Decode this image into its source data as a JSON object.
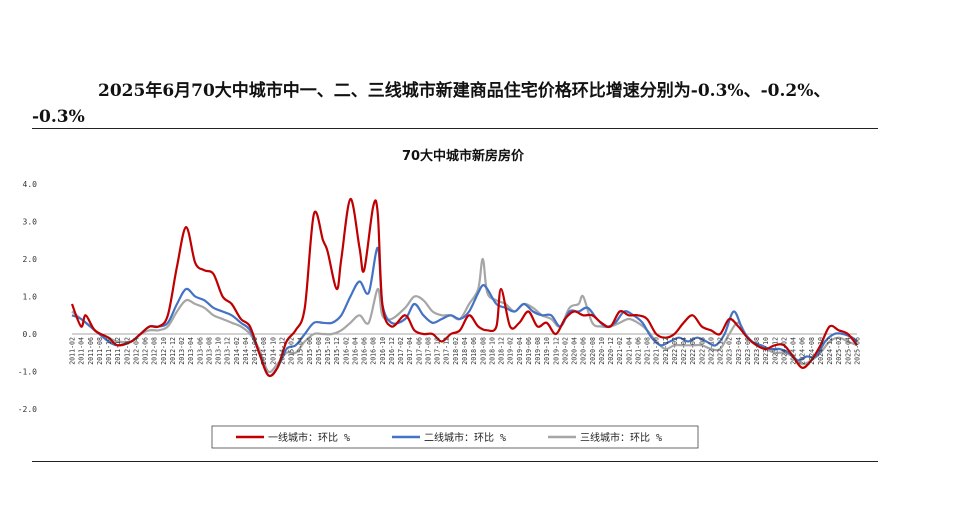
{
  "page": {
    "title_line1": "2025年6月70大中城市中一、二、三线城市新建商品住宅价格环比增速分别为-0.3%、-0.2%、",
    "title_line2": "-0.3%"
  },
  "chart_data": {
    "type": "line",
    "title": "70大中城市新房房价",
    "xlabel": "",
    "ylabel": "",
    "ylim": [
      -2.0,
      4.0
    ],
    "yticks": [
      "4.0",
      "3.0",
      "2.0",
      "1.0",
      "0.0",
      "-1.0",
      "-2.0"
    ],
    "ytick_values": [
      4,
      3,
      2,
      1,
      0,
      -1,
      -2
    ],
    "x_start": "2011-02",
    "x_end": "2025-06",
    "xtick_labels": [
      "2011-02",
      "2011-04",
      "2011-06",
      "2011-08",
      "2011-10",
      "2011-12",
      "2012-02",
      "2012-04",
      "2012-06",
      "2012-08",
      "2012-10",
      "2012-12",
      "2013-02",
      "2013-04",
      "2013-06",
      "2013-08",
      "2013-10",
      "2013-12",
      "2014-02",
      "2014-04",
      "2014-06",
      "2014-08",
      "2014-10",
      "2014-12",
      "2015-02",
      "2015-04",
      "2015-06",
      "2015-08",
      "2015-10",
      "2015-12",
      "2016-02",
      "2016-04",
      "2016-06",
      "2016-08",
      "2016-10",
      "2016-12",
      "2017-02",
      "2017-04",
      "2017-06",
      "2017-08",
      "2017-10",
      "2017-12",
      "2018-02",
      "2018-04",
      "2018-06",
      "2018-08",
      "2018-10",
      "2018-12",
      "2019-02",
      "2019-04",
      "2019-06",
      "2019-08",
      "2019-10",
      "2019-12",
      "2020-02",
      "2020-04",
      "2020-06",
      "2020-08",
      "2020-10",
      "2020-12",
      "2021-02",
      "2021-04",
      "2021-06",
      "2021-08",
      "2021-10",
      "2021-12",
      "2022-02",
      "2022-04",
      "2022-06",
      "2022-08",
      "2022-10",
      "2022-12",
      "2023-02",
      "2023-04",
      "2023-06",
      "2023-08",
      "2023-10",
      "2023-12",
      "2024-02",
      "2024-04",
      "2024-06",
      "2024-08",
      "2024-10",
      "2024-12",
      "2025-02",
      "2025-04",
      "2025-06"
    ],
    "legend_position": "bottom",
    "grid": false,
    "series": [
      {
        "name": "一线城市：环比 %",
        "color": "#c00000",
        "points": [
          [
            "2011-02",
            0.8
          ],
          [
            "2011-04",
            0.2
          ],
          [
            "2011-05",
            0.5
          ],
          [
            "2011-07",
            0.1
          ],
          [
            "2011-10",
            -0.1
          ],
          [
            "2011-12",
            -0.3
          ],
          [
            "2012-03",
            -0.2
          ],
          [
            "2012-05",
            0.0
          ],
          [
            "2012-07",
            0.2
          ],
          [
            "2012-09",
            0.2
          ],
          [
            "2012-11",
            0.5
          ],
          [
            "2013-01",
            1.8
          ],
          [
            "2013-03",
            2.85
          ],
          [
            "2013-05",
            1.9
          ],
          [
            "2013-07",
            1.7
          ],
          [
            "2013-09",
            1.6
          ],
          [
            "2013-11",
            1.0
          ],
          [
            "2014-01",
            0.8
          ],
          [
            "2014-03",
            0.4
          ],
          [
            "2014-05",
            0.2
          ],
          [
            "2014-07",
            -0.5
          ],
          [
            "2014-09",
            -1.1
          ],
          [
            "2014-11",
            -0.9
          ],
          [
            "2015-01",
            -0.2
          ],
          [
            "2015-03",
            0.1
          ],
          [
            "2015-05",
            0.7
          ],
          [
            "2015-07",
            3.2
          ],
          [
            "2015-09",
            2.5
          ],
          [
            "2015-10",
            2.2
          ],
          [
            "2015-12",
            1.2
          ],
          [
            "2016-01",
            2.0
          ],
          [
            "2016-03",
            3.6
          ],
          [
            "2016-05",
            2.3
          ],
          [
            "2016-06",
            1.7
          ],
          [
            "2016-08",
            3.4
          ],
          [
            "2016-09",
            3.2
          ],
          [
            "2016-10",
            0.8
          ],
          [
            "2016-12",
            0.2
          ],
          [
            "2017-03",
            0.5
          ],
          [
            "2017-05",
            0.1
          ],
          [
            "2017-07",
            0.0
          ],
          [
            "2017-09",
            0.0
          ],
          [
            "2017-11",
            -0.2
          ],
          [
            "2018-01",
            0.0
          ],
          [
            "2018-03",
            0.1
          ],
          [
            "2018-05",
            0.5
          ],
          [
            "2018-07",
            0.2
          ],
          [
            "2018-09",
            0.1
          ],
          [
            "2018-11",
            0.2
          ],
          [
            "2018-12",
            1.2
          ],
          [
            "2019-02",
            0.2
          ],
          [
            "2019-04",
            0.3
          ],
          [
            "2019-06",
            0.6
          ],
          [
            "2019-08",
            0.2
          ],
          [
            "2019-10",
            0.3
          ],
          [
            "2019-12",
            0.0
          ],
          [
            "2020-02",
            0.4
          ],
          [
            "2020-04",
            0.6
          ],
          [
            "2020-06",
            0.5
          ],
          [
            "2020-08",
            0.5
          ],
          [
            "2020-10",
            0.3
          ],
          [
            "2020-12",
            0.2
          ],
          [
            "2021-02",
            0.6
          ],
          [
            "2021-04",
            0.5
          ],
          [
            "2021-06",
            0.5
          ],
          [
            "2021-08",
            0.4
          ],
          [
            "2021-10",
            0.0
          ],
          [
            "2021-12",
            -0.1
          ],
          [
            "2022-02",
            0.0
          ],
          [
            "2022-04",
            0.3
          ],
          [
            "2022-06",
            0.5
          ],
          [
            "2022-08",
            0.2
          ],
          [
            "2022-10",
            0.1
          ],
          [
            "2022-12",
            0.0
          ],
          [
            "2023-02",
            0.4
          ],
          [
            "2023-04",
            0.2
          ],
          [
            "2023-06",
            -0.1
          ],
          [
            "2023-08",
            -0.3
          ],
          [
            "2023-10",
            -0.4
          ],
          [
            "2023-12",
            -0.3
          ],
          [
            "2024-02",
            -0.3
          ],
          [
            "2024-04",
            -0.6
          ],
          [
            "2024-06",
            -0.9
          ],
          [
            "2024-08",
            -0.7
          ],
          [
            "2024-10",
            -0.3
          ],
          [
            "2024-12",
            0.2
          ],
          [
            "2025-02",
            0.1
          ],
          [
            "2025-04",
            0.0
          ],
          [
            "2025-06",
            -0.3
          ]
        ]
      },
      {
        "name": "二线城市：环比 %",
        "color": "#4472c4",
        "points": [
          [
            "2011-02",
            0.5
          ],
          [
            "2011-04",
            0.4
          ],
          [
            "2011-06",
            0.2
          ],
          [
            "2011-08",
            0.0
          ],
          [
            "2011-10",
            -0.2
          ],
          [
            "2011-12",
            -0.3
          ],
          [
            "2012-03",
            -0.2
          ],
          [
            "2012-05",
            0.0
          ],
          [
            "2012-07",
            0.2
          ],
          [
            "2012-09",
            0.2
          ],
          [
            "2012-11",
            0.3
          ],
          [
            "2013-01",
            0.8
          ],
          [
            "2013-03",
            1.2
          ],
          [
            "2013-05",
            1.0
          ],
          [
            "2013-07",
            0.9
          ],
          [
            "2013-09",
            0.7
          ],
          [
            "2013-11",
            0.6
          ],
          [
            "2014-01",
            0.5
          ],
          [
            "2014-03",
            0.3
          ],
          [
            "2014-05",
            0.1
          ],
          [
            "2014-07",
            -0.5
          ],
          [
            "2014-09",
            -1.1
          ],
          [
            "2014-11",
            -0.9
          ],
          [
            "2015-01",
            -0.4
          ],
          [
            "2015-03",
            -0.3
          ],
          [
            "2015-05",
            0.0
          ],
          [
            "2015-07",
            0.3
          ],
          [
            "2015-09",
            0.3
          ],
          [
            "2015-11",
            0.3
          ],
          [
            "2016-01",
            0.5
          ],
          [
            "2016-03",
            1.0
          ],
          [
            "2016-05",
            1.4
          ],
          [
            "2016-07",
            1.1
          ],
          [
            "2016-09",
            2.3
          ],
          [
            "2016-10",
            0.8
          ],
          [
            "2016-12",
            0.3
          ],
          [
            "2017-03",
            0.4
          ],
          [
            "2017-05",
            0.8
          ],
          [
            "2017-07",
            0.5
          ],
          [
            "2017-09",
            0.3
          ],
          [
            "2017-11",
            0.4
          ],
          [
            "2018-01",
            0.5
          ],
          [
            "2018-03",
            0.4
          ],
          [
            "2018-05",
            0.6
          ],
          [
            "2018-07",
            1.1
          ],
          [
            "2018-08",
            1.3
          ],
          [
            "2018-09",
            1.2
          ],
          [
            "2018-11",
            0.8
          ],
          [
            "2019-01",
            0.7
          ],
          [
            "2019-03",
            0.6
          ],
          [
            "2019-05",
            0.8
          ],
          [
            "2019-07",
            0.6
          ],
          [
            "2019-09",
            0.5
          ],
          [
            "2019-11",
            0.5
          ],
          [
            "2020-01",
            0.2
          ],
          [
            "2020-03",
            0.6
          ],
          [
            "2020-05",
            0.6
          ],
          [
            "2020-07",
            0.7
          ],
          [
            "2020-09",
            0.4
          ],
          [
            "2020-11",
            0.2
          ],
          [
            "2021-01",
            0.3
          ],
          [
            "2021-03",
            0.6
          ],
          [
            "2021-05",
            0.5
          ],
          [
            "2021-07",
            0.3
          ],
          [
            "2021-09",
            -0.1
          ],
          [
            "2021-11",
            -0.3
          ],
          [
            "2022-01",
            -0.2
          ],
          [
            "2022-03",
            -0.1
          ],
          [
            "2022-05",
            -0.2
          ],
          [
            "2022-07",
            -0.1
          ],
          [
            "2022-09",
            -0.2
          ],
          [
            "2022-11",
            -0.3
          ],
          [
            "2023-01",
            0.0
          ],
          [
            "2023-03",
            0.6
          ],
          [
            "2023-05",
            0.1
          ],
          [
            "2023-07",
            -0.2
          ],
          [
            "2023-09",
            -0.3
          ],
          [
            "2023-11",
            -0.4
          ],
          [
            "2024-01",
            -0.4
          ],
          [
            "2024-03",
            -0.5
          ],
          [
            "2024-05",
            -0.7
          ],
          [
            "2024-07",
            -0.6
          ],
          [
            "2024-09",
            -0.6
          ],
          [
            "2024-11",
            -0.2
          ],
          [
            "2025-01",
            0.0
          ],
          [
            "2025-03",
            0.0
          ],
          [
            "2025-05",
            -0.1
          ],
          [
            "2025-06",
            -0.2
          ]
        ]
      },
      {
        "name": "三线城市：环比 %",
        "color": "#a6a6a6",
        "points": [
          [
            "2011-02",
            0.6
          ],
          [
            "2011-04",
            0.4
          ],
          [
            "2011-06",
            0.2
          ],
          [
            "2011-08",
            0.0
          ],
          [
            "2011-10",
            -0.1
          ],
          [
            "2011-12",
            -0.2
          ],
          [
            "2012-03",
            -0.2
          ],
          [
            "2012-05",
            0.0
          ],
          [
            "2012-07",
            0.1
          ],
          [
            "2012-09",
            0.1
          ],
          [
            "2012-11",
            0.2
          ],
          [
            "2013-01",
            0.6
          ],
          [
            "2013-03",
            0.9
          ],
          [
            "2013-05",
            0.8
          ],
          [
            "2013-07",
            0.7
          ],
          [
            "2013-09",
            0.5
          ],
          [
            "2013-11",
            0.4
          ],
          [
            "2014-01",
            0.3
          ],
          [
            "2014-03",
            0.2
          ],
          [
            "2014-05",
            0.0
          ],
          [
            "2014-07",
            -0.4
          ],
          [
            "2014-09",
            -1.0
          ],
          [
            "2014-11",
            -0.8
          ],
          [
            "2015-01",
            -0.5
          ],
          [
            "2015-03",
            -0.5
          ],
          [
            "2015-05",
            -0.2
          ],
          [
            "2015-07",
            0.0
          ],
          [
            "2015-09",
            0.0
          ],
          [
            "2015-11",
            0.0
          ],
          [
            "2016-01",
            0.1
          ],
          [
            "2016-03",
            0.3
          ],
          [
            "2016-05",
            0.5
          ],
          [
            "2016-07",
            0.3
          ],
          [
            "2016-09",
            1.2
          ],
          [
            "2016-10",
            0.5
          ],
          [
            "2016-12",
            0.4
          ],
          [
            "2017-03",
            0.7
          ],
          [
            "2017-05",
            1.0
          ],
          [
            "2017-07",
            0.9
          ],
          [
            "2017-09",
            0.6
          ],
          [
            "2017-11",
            0.5
          ],
          [
            "2018-01",
            0.5
          ],
          [
            "2018-03",
            0.4
          ],
          [
            "2018-05",
            0.8
          ],
          [
            "2018-07",
            1.2
          ],
          [
            "2018-08",
            2.0
          ],
          [
            "2018-09",
            1.1
          ],
          [
            "2018-11",
            0.9
          ],
          [
            "2019-01",
            0.8
          ],
          [
            "2019-03",
            0.6
          ],
          [
            "2019-05",
            0.8
          ],
          [
            "2019-07",
            0.7
          ],
          [
            "2019-09",
            0.5
          ],
          [
            "2019-11",
            0.4
          ],
          [
            "2020-01",
            0.2
          ],
          [
            "2020-03",
            0.7
          ],
          [
            "2020-05",
            0.8
          ],
          [
            "2020-06",
            1.0
          ],
          [
            "2020-08",
            0.3
          ],
          [
            "2020-10",
            0.2
          ],
          [
            "2020-12",
            0.2
          ],
          [
            "2021-02",
            0.3
          ],
          [
            "2021-04",
            0.4
          ],
          [
            "2021-06",
            0.3
          ],
          [
            "2021-08",
            0.1
          ],
          [
            "2021-10",
            -0.2
          ],
          [
            "2021-12",
            -0.4
          ],
          [
            "2022-02",
            -0.3
          ],
          [
            "2022-04",
            -0.3
          ],
          [
            "2022-06",
            -0.3
          ],
          [
            "2022-08",
            -0.3
          ],
          [
            "2022-10",
            -0.4
          ],
          [
            "2022-12",
            -0.4
          ],
          [
            "2023-02",
            0.0
          ],
          [
            "2023-04",
            0.3
          ],
          [
            "2023-06",
            -0.1
          ],
          [
            "2023-08",
            -0.3
          ],
          [
            "2023-10",
            -0.4
          ],
          [
            "2023-12",
            -0.5
          ],
          [
            "2024-02",
            -0.5
          ],
          [
            "2024-04",
            -0.6
          ],
          [
            "2024-06",
            -0.8
          ],
          [
            "2024-08",
            -0.7
          ],
          [
            "2024-10",
            -0.5
          ],
          [
            "2024-12",
            -0.2
          ],
          [
            "2025-02",
            -0.1
          ],
          [
            "2025-04",
            -0.2
          ],
          [
            "2025-06",
            -0.3
          ]
        ]
      }
    ]
  }
}
